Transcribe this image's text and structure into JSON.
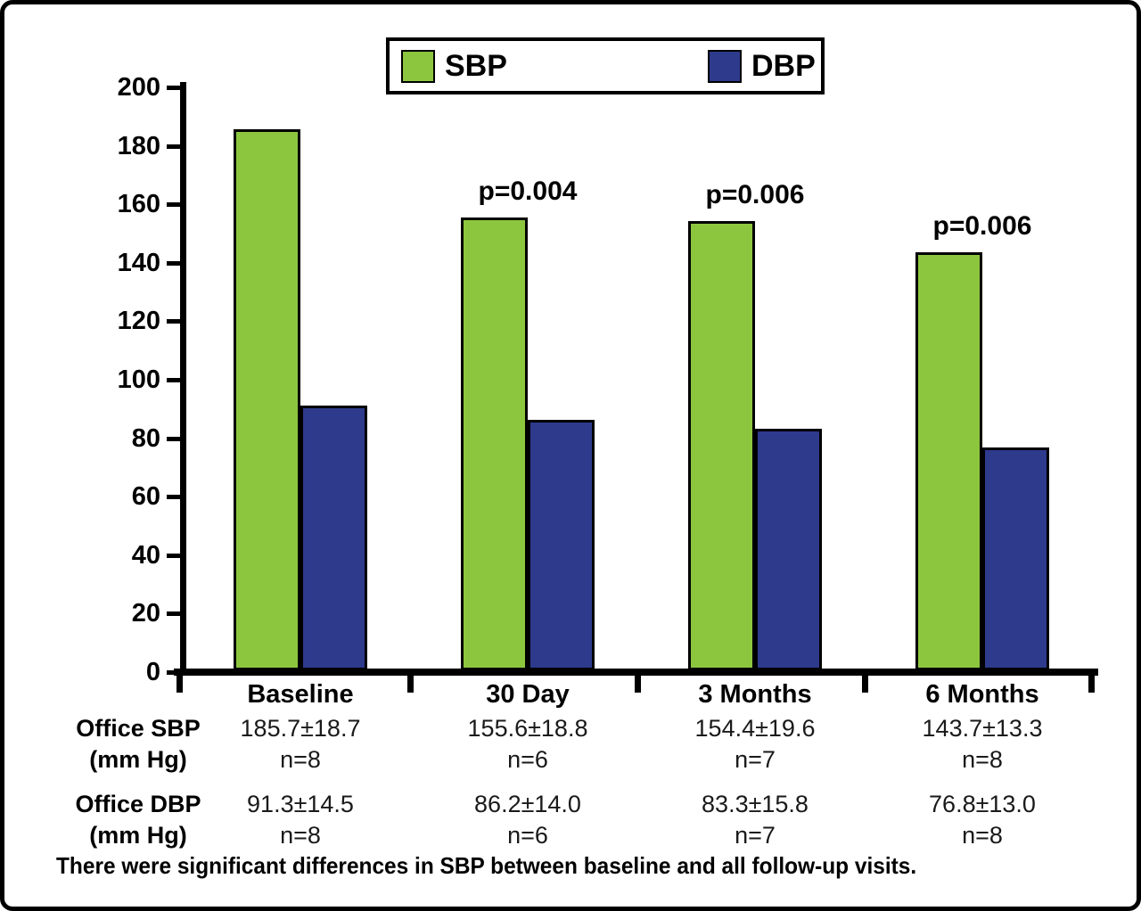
{
  "legend": {
    "items": [
      {
        "label": "SBP",
        "color": "#8CC63F"
      },
      {
        "label": "DBP",
        "color": "#2E3A8C"
      }
    ]
  },
  "chart_data": {
    "type": "bar",
    "title": "",
    "xlabel": "",
    "ylabel": "",
    "categories": [
      "Baseline",
      "30 Day",
      "3 Months",
      "6 Months"
    ],
    "series": [
      {
        "name": "SBP",
        "color": "#8CC63F",
        "values": [
          185.7,
          155.6,
          154.4,
          143.7
        ]
      },
      {
        "name": "DBP",
        "color": "#2E3A8C",
        "values": [
          91.3,
          86.2,
          83.3,
          76.8
        ]
      }
    ],
    "annotations": [
      {
        "category_index": 1,
        "series": "SBP",
        "text": "p=0.004"
      },
      {
        "category_index": 2,
        "series": "SBP",
        "text": "p=0.006"
      },
      {
        "category_index": 3,
        "series": "SBP",
        "text": "p=0.006"
      }
    ],
    "ylim": [
      0,
      200
    ],
    "ytick_step": 20,
    "grid": false,
    "legend_position": "top"
  },
  "table": {
    "rows": [
      {
        "label_line1": "Office SBP",
        "label_line2": "(mm Hg)",
        "cells": [
          {
            "value": "185.7±18.7",
            "n": "n=8"
          },
          {
            "value": "155.6±18.8",
            "n": "n=6"
          },
          {
            "value": "154.4±19.6",
            "n": "n=7"
          },
          {
            "value": "143.7±13.3",
            "n": "n=8"
          }
        ]
      },
      {
        "label_line1": "Office DBP",
        "label_line2": "(mm Hg)",
        "cells": [
          {
            "value": "91.3±14.5",
            "n": "n=8"
          },
          {
            "value": "86.2±14.0",
            "n": "n=6"
          },
          {
            "value": "83.3±15.8",
            "n": "n=7"
          },
          {
            "value": "76.8±13.0",
            "n": "n=8"
          }
        ]
      }
    ]
  },
  "footer": {
    "text": "There were significant differences in SBP between baseline and all follow-up visits."
  }
}
